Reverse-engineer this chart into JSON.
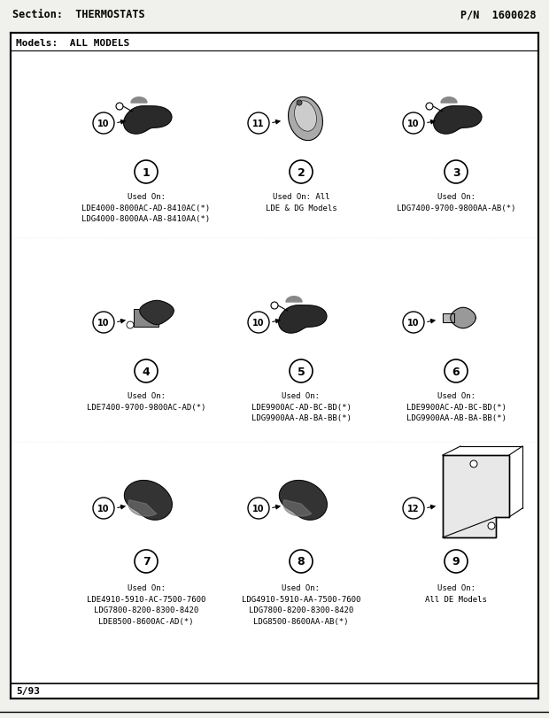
{
  "title": "Section:  THERMOSTATS",
  "pn": "P/N  1600028",
  "models": "Models:  ALL MODELS",
  "footer": "5/93",
  "bg_color": "#f0f0ec",
  "white": "#ffffff",
  "parts": [
    {
      "num": "1",
      "bubble_num": "10",
      "col": 0,
      "row": 0,
      "label": "Used On:\nLDE4000-8000AC-AD-8410AC(*)\nLDG4000-8000AA-AB-8410AA(*)",
      "type": "thermostat_round"
    },
    {
      "num": "2",
      "bubble_num": "11",
      "col": 1,
      "row": 0,
      "label": "Used On: All\nLDE & DG Models",
      "type": "thermostat_oval"
    },
    {
      "num": "3",
      "bubble_num": "10",
      "col": 2,
      "row": 0,
      "label": "Used On:\nLDG7400-9700-9800AA-AB(*)",
      "type": "thermostat_round"
    },
    {
      "num": "4",
      "bubble_num": "10",
      "col": 0,
      "row": 1,
      "label": "Used On:\nLDE7400-9700-9800AC-AD(*)",
      "type": "thermostat_small"
    },
    {
      "num": "5",
      "bubble_num": "10",
      "col": 1,
      "row": 1,
      "label": "Used On:\nLDE9900AC-AD-BC-BD(*)\nLDG9900AA-AB-BA-BB(*)",
      "type": "thermostat_round"
    },
    {
      "num": "6",
      "bubble_num": "10",
      "col": 2,
      "row": 1,
      "label": "Used On:\nLDE9900AC-AD-BC-BD(*)\nLDG9900AA-AB-BA-BB(*)",
      "type": "thermostat_tiny"
    },
    {
      "num": "7",
      "bubble_num": "10",
      "col": 0,
      "row": 2,
      "label": "Used On:\nLDE4910-5910-AC-7500-7600\nLDG7800-8200-8300-8420\nLDE8500-8600AC-AD(*)",
      "type": "thermostat_large"
    },
    {
      "num": "8",
      "bubble_num": "10",
      "col": 1,
      "row": 2,
      "label": "Used On:\nLDG4910-5910-AA-7500-7600\nLDG7800-8200-8300-8420\nLDG8500-8600AA-AB(*)",
      "type": "thermostat_large"
    },
    {
      "num": "9",
      "bubble_num": "12",
      "col": 2,
      "row": 2,
      "label": "Used On:\nAll DE Models",
      "type": "bracket"
    }
  ]
}
